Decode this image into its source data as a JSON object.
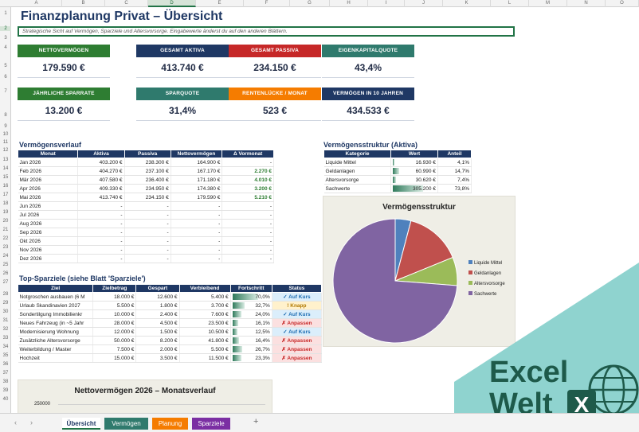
{
  "columns": [
    "A",
    "B",
    "C",
    "D",
    "E",
    "F",
    "G",
    "H",
    "I",
    "J",
    "K",
    "L",
    "M",
    "N",
    "O"
  ],
  "rows": [
    "1",
    "2",
    "3",
    "4",
    "5",
    "6",
    "7",
    "8",
    "9",
    "10",
    "11",
    "12",
    "13",
    "14",
    "15",
    "16",
    "17",
    "18",
    "19",
    "20",
    "21",
    "22",
    "23",
    "24",
    "25",
    "26",
    "27",
    "28",
    "29",
    "30",
    "31",
    "32",
    "33",
    "34",
    "35",
    "36",
    "37",
    "38",
    "39",
    "40",
    "41"
  ],
  "title": "Finanzplanung Privat – Übersicht",
  "subtitle": "Strategische Sicht auf Vermögen, Sparziele und Altersvorsorge. Eingabewerte änderst du auf den anderen Blättern.",
  "kpis_row1": [
    {
      "label": "NETTOVERMÖGEN",
      "value": "179.590 €",
      "color": "#2e7d32"
    },
    {
      "label": "GESAMT AKTIVA",
      "value": "413.740 €",
      "color": "#1f3864"
    },
    {
      "label": "GESAMT PASSIVA",
      "value": "234.150 €",
      "color": "#c62828"
    },
    {
      "label": "EIGENKAPITALQUOTE",
      "value": "43,4%",
      "color": "#2f7a6d"
    }
  ],
  "kpis_row2": [
    {
      "label": "JÄHRLICHE SPARRATE",
      "value": "13.200 €",
      "color": "#2e7d32"
    },
    {
      "label": "SPARQUOTE",
      "value": "31,4%",
      "color": "#2f7a6d"
    },
    {
      "label": "RENTENLÜCKE / MONAT",
      "value": "523 €",
      "color": "#f57c00"
    },
    {
      "label": "VERMÖGEN IN 10 JAHREN",
      "value": "434.533 €",
      "color": "#1f3864"
    }
  ],
  "verlauf": {
    "title": "Vermögensverlauf",
    "headers": [
      "Monat",
      "Aktiva",
      "Passiva",
      "Nettovermögen",
      "Δ Vormonat"
    ],
    "rows": [
      [
        "Jan 2026",
        "403.200 €",
        "238.300 €",
        "164.900 €",
        "-"
      ],
      [
        "Feb 2026",
        "404.270 €",
        "237.100 €",
        "167.170 €",
        "2.270 €"
      ],
      [
        "Mär 2026",
        "407.580 €",
        "236.400 €",
        "171.180 €",
        "4.010 €"
      ],
      [
        "Apr 2026",
        "409.330 €",
        "234.950 €",
        "174.380 €",
        "3.200 €"
      ],
      [
        "Mai 2026",
        "413.740 €",
        "234.150 €",
        "179.590 €",
        "5.210 €"
      ],
      [
        "Jun 2026",
        "-",
        "-",
        "-",
        "-"
      ],
      [
        "Jul 2026",
        "-",
        "-",
        "-",
        "-"
      ],
      [
        "Aug 2026",
        "-",
        "-",
        "-",
        "-"
      ],
      [
        "Sep 2026",
        "-",
        "-",
        "-",
        "-"
      ],
      [
        "Okt 2026",
        "-",
        "-",
        "-",
        "-"
      ],
      [
        "Nov 2026",
        "-",
        "-",
        "-",
        "-"
      ],
      [
        "Dez 2026",
        "-",
        "-",
        "-",
        "-"
      ]
    ]
  },
  "struktur": {
    "title": "Vermögensstruktur (Aktiva)",
    "headers": [
      "Kategorie",
      "Wert",
      "Anteil"
    ],
    "rows": [
      {
        "name": "Liquide Mittel",
        "value": "16.930 €",
        "share": "4,1%",
        "pct": 4.1
      },
      {
        "name": "Geldanlagen",
        "value": "60.990 €",
        "share": "14,7%",
        "pct": 14.7
      },
      {
        "name": "Altersvorsorge",
        "value": "30.620 €",
        "share": "7,4%",
        "pct": 7.4
      },
      {
        "name": "Sachwerte",
        "value": "305.200 €",
        "share": "73,8%",
        "pct": 73.8
      }
    ]
  },
  "sparziele": {
    "title": "Top-Sparziele (siehe Blatt 'Sparziele')",
    "headers": [
      "Ziel",
      "Zielbetrag",
      "Gespart",
      "Verbleibend",
      "Fortschritt",
      "Status"
    ],
    "rows": [
      {
        "ziel": "Notgroschen ausbauen (6 M",
        "ziel_betrag": "18.000 €",
        "gespart": "12.600 €",
        "rest": "5.400 €",
        "progress": "70,0%",
        "pct": 70.0,
        "status": "✓ Auf Kurs",
        "st": "ok"
      },
      {
        "ziel": "Urlaub Skandinavien 2027",
        "ziel_betrag": "5.500 €",
        "gespart": "1.800 €",
        "rest": "3.700 €",
        "progress": "32,7%",
        "pct": 32.7,
        "status": "! Knapp",
        "st": "warn"
      },
      {
        "ziel": "Sondertilgung Immobilienkr",
        "ziel_betrag": "10.000 €",
        "gespart": "2.400 €",
        "rest": "7.600 €",
        "progress": "24,0%",
        "pct": 24.0,
        "status": "✓ Auf Kurs",
        "st": "ok"
      },
      {
        "ziel": "Neues Fahrzeug (in ~5 Jahr",
        "ziel_betrag": "28.000 €",
        "gespart": "4.500 €",
        "rest": "23.500 €",
        "progress": "16,1%",
        "pct": 16.1,
        "status": "✗ Anpassen",
        "st": "bad"
      },
      {
        "ziel": "Modernisierung Wohnung",
        "ziel_betrag": "12.000 €",
        "gespart": "1.500 €",
        "rest": "10.500 €",
        "progress": "12,5%",
        "pct": 12.5,
        "status": "✓ Auf Kurs",
        "st": "ok"
      },
      {
        "ziel": "Zusätzliche Altersvorsorge",
        "ziel_betrag": "50.000 €",
        "gespart": "8.200 €",
        "rest": "41.800 €",
        "progress": "16,4%",
        "pct": 16.4,
        "status": "✗ Anpassen",
        "st": "bad"
      },
      {
        "ziel": "Weiterbildung / Master",
        "ziel_betrag": "7.500 €",
        "gespart": "2.000 €",
        "rest": "5.500 €",
        "progress": "26,7%",
        "pct": 26.7,
        "status": "✗ Anpassen",
        "st": "bad"
      },
      {
        "ziel": "Hochzeit",
        "ziel_betrag": "15.000 €",
        "gespart": "3.500 €",
        "rest": "11.500 €",
        "progress": "23,3%",
        "pct": 23.3,
        "status": "✗ Anpassen",
        "st": "bad"
      }
    ]
  },
  "chart_data": [
    {
      "type": "pie",
      "title": "Vermögensstruktur",
      "categories": [
        "Liquide Mittel",
        "Geldanlagen",
        "Altersvorsorge",
        "Sachwerte"
      ],
      "values": [
        16930,
        60990,
        30620,
        305200
      ],
      "colors": [
        "#4f81bd",
        "#c0504d",
        "#9bbb59",
        "#8064a2"
      ],
      "legend": "right"
    },
    {
      "type": "line",
      "title": "Nettovermögen 2026 – Monatsverlauf",
      "y_tick_top": "250000"
    }
  ],
  "tabs": [
    {
      "label": "Übersicht",
      "active": true
    },
    {
      "label": "Vermögen",
      "color": "#2f7a6d"
    },
    {
      "label": "Planung",
      "color": "#f57c00"
    },
    {
      "label": "Sparziele",
      "color": "#7b2fa3"
    }
  ],
  "tabbar_add": "+",
  "logo": {
    "line1": "Excel",
    "line2": "Welt",
    "badge": "X",
    "bg": "#8fd3cf",
    "fg": "#1e5a4a"
  }
}
